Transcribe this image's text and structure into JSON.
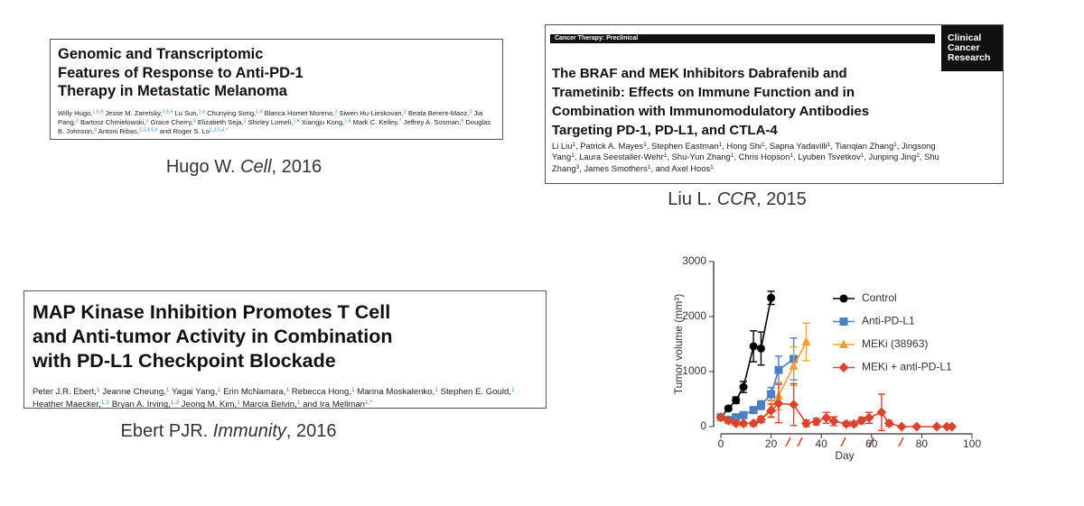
{
  "papers": [
    {
      "title_lines": [
        "Genomic and Transcriptomic",
        "Features of Response to Anti-PD-1",
        "Therapy in Metastatic Melanoma"
      ],
      "authors": [
        {
          "text": "Willy Hugo,",
          "sup": "1,6,9"
        },
        {
          "text": " Jesse M. Zaretsky,",
          "sup": "2,6,9"
        },
        {
          "text": " Lu Sun,",
          "sup": "1,6"
        },
        {
          "text": " Chunying Song,",
          "sup": "1,6"
        },
        {
          "text": " Blanca Homet Moreno,",
          "sup": "3"
        },
        {
          "text": " Siwen Hu-Lieskovan,",
          "sup": "3"
        },
        {
          "text": " Beata Berent-Maoz,",
          "sup": "3"
        },
        {
          "text": " Jia Pang,",
          "sup": "3"
        },
        {
          "text": " Bartosz Chmielowski,",
          "sup": "3"
        },
        {
          "text": " Grace Cherry,",
          "sup": "3"
        },
        {
          "text": " Elizabeth Seja,",
          "sup": "3"
        },
        {
          "text": " Shirley Lomeli,",
          "sup": "1,6"
        },
        {
          "text": " Xiangju Kong,",
          "sup": "1,6"
        },
        {
          "text": " Mark C. Kelley,",
          "sup": "7"
        },
        {
          "text": " Jeffrey A. Sosman,",
          "sup": "8"
        },
        {
          "text": " Douglas B. Johnson,",
          "sup": "8"
        },
        {
          "text": " Antoni Ribas,",
          "sup": "2,3,4,5,6"
        },
        {
          "text": " and Roger S. Lo",
          "sup": "1,2,5,6,*"
        }
      ],
      "caption": {
        "author": "Hugo W.",
        "journal": "Cell",
        "rest": ", 2016"
      }
    },
    {
      "section": "Cancer Therapy: Preclinical",
      "journal_logo": [
        "Clinical",
        "Cancer",
        "Research"
      ],
      "title_lines": [
        "The BRAF and MEK Inhibitors Dabrafenib and",
        "Trametinib: Effects on Immune Function and in",
        "Combination with Immunomodulatory Antibodies",
        "Targeting PD-1, PD-L1, and CTLA-4"
      ],
      "authors": [
        {
          "text": "Li Liu",
          "sup": "1"
        },
        {
          "text": ", Patrick A. Mayes",
          "sup": "1"
        },
        {
          "text": ", Stephen Eastman",
          "sup": "1"
        },
        {
          "text": ", Hong Shi",
          "sup": "1"
        },
        {
          "text": ", Sapna Yadavilli",
          "sup": "1"
        },
        {
          "text": ", Tianqian Zhang",
          "sup": "1"
        },
        {
          "text": ", Jingsong Yang",
          "sup": "1"
        },
        {
          "text": ", Laura Seestaller-Wehr",
          "sup": "1"
        },
        {
          "text": ", Shu-Yun Zhang",
          "sup": "1"
        },
        {
          "text": ", Chris Hopson",
          "sup": "1"
        },
        {
          "text": ", Lyuben Tsvetkov",
          "sup": "1"
        },
        {
          "text": ", Junping Jing",
          "sup": "2"
        },
        {
          "text": ", Shu Zhang",
          "sup": "3"
        },
        {
          "text": ", James Smothers",
          "sup": "1"
        },
        {
          "text": ", and Axel Hoos",
          "sup": "1"
        }
      ],
      "caption": {
        "author": "Liu L.",
        "journal": "CCR",
        "rest": ", 2015"
      }
    },
    {
      "title_lines": [
        "MAP Kinase Inhibition Promotes T Cell",
        "and Anti-tumor Activity in Combination",
        "with PD-L1 Checkpoint Blockade"
      ],
      "authors": [
        {
          "text": "Peter J.R. Ebert,",
          "sup": "1"
        },
        {
          "text": " Jeanne Cheung,",
          "sup": "1"
        },
        {
          "text": " Yagai Yang,",
          "sup": "1"
        },
        {
          "text": " Erin McNamara,",
          "sup": "1"
        },
        {
          "text": " Rebecca Hong,",
          "sup": "1"
        },
        {
          "text": " Marina Moskalenko,",
          "sup": "1"
        },
        {
          "text": " Stephen E. Gould,",
          "sup": "1"
        },
        {
          "text": " Heather Maecker,",
          "sup": "1,2"
        },
        {
          "text": " Bryan A. Irving,",
          "sup": "1,3"
        },
        {
          "text": " Jeong M. Kim,",
          "sup": "1"
        },
        {
          "text": " Marcia Belvin,",
          "sup": "1"
        },
        {
          "text": " and Ira Mellman",
          "sup": "1,*"
        }
      ],
      "caption": {
        "author": "Ebert PJR.",
        "journal": "Immunity",
        "rest": ", 2016"
      }
    }
  ],
  "chart_data": {
    "type": "line",
    "xlabel": "Day",
    "ylabel": "Tumor volume (mm³)",
    "xlim": [
      0,
      100
    ],
    "xticks": [
      0,
      20,
      40,
      60,
      80,
      100
    ],
    "ylim": [
      0,
      3000
    ],
    "yticks": [
      0,
      1000,
      2000,
      3000
    ],
    "legend": "upper right",
    "series": [
      {
        "name": "Control",
        "color": "#000000",
        "marker": "circle",
        "x": [
          0,
          3,
          6,
          9,
          13,
          16,
          20
        ],
        "values": [
          170,
          330,
          480,
          720,
          1460,
          1420,
          2340
        ],
        "errors": [
          20,
          40,
          60,
          100,
          280,
          300,
          120
        ]
      },
      {
        "name": "Anti-PD-L1",
        "color": "#4a7fc1",
        "marker": "square",
        "x": [
          0,
          3,
          6,
          9,
          13,
          16,
          20,
          23,
          29
        ],
        "values": [
          170,
          120,
          170,
          210,
          300,
          390,
          590,
          1030,
          1230
        ],
        "errors": [
          20,
          20,
          30,
          40,
          60,
          80,
          120,
          250,
          380
        ]
      },
      {
        "name": "MEKi (38963)",
        "color": "#f0a030",
        "marker": "triangle",
        "x": [
          0,
          3,
          6,
          9,
          13,
          16,
          20,
          23,
          29,
          34
        ],
        "values": [
          170,
          110,
          80,
          60,
          60,
          130,
          330,
          560,
          1100,
          1540
        ],
        "errors": [
          20,
          20,
          20,
          20,
          30,
          60,
          150,
          250,
          350,
          340
        ]
      },
      {
        "name": "MEKi + anti-PD-L1",
        "color": "#d9432f",
        "marker": "diamond",
        "x": [
          0,
          3,
          6,
          9,
          13,
          16,
          20,
          23,
          29,
          34,
          38,
          42,
          45,
          50,
          53,
          56,
          59,
          64,
          67,
          72,
          78,
          86,
          90,
          92
        ],
        "values": [
          170,
          110,
          60,
          60,
          60,
          130,
          290,
          420,
          400,
          60,
          90,
          160,
          100,
          50,
          50,
          110,
          160,
          260,
          60,
          0,
          0,
          0,
          0,
          0
        ],
        "errors": [
          20,
          20,
          20,
          20,
          30,
          50,
          120,
          350,
          380,
          60,
          60,
          100,
          80,
          40,
          40,
          60,
          100,
          330,
          50,
          0,
          0,
          0,
          0,
          0
        ]
      }
    ]
  }
}
